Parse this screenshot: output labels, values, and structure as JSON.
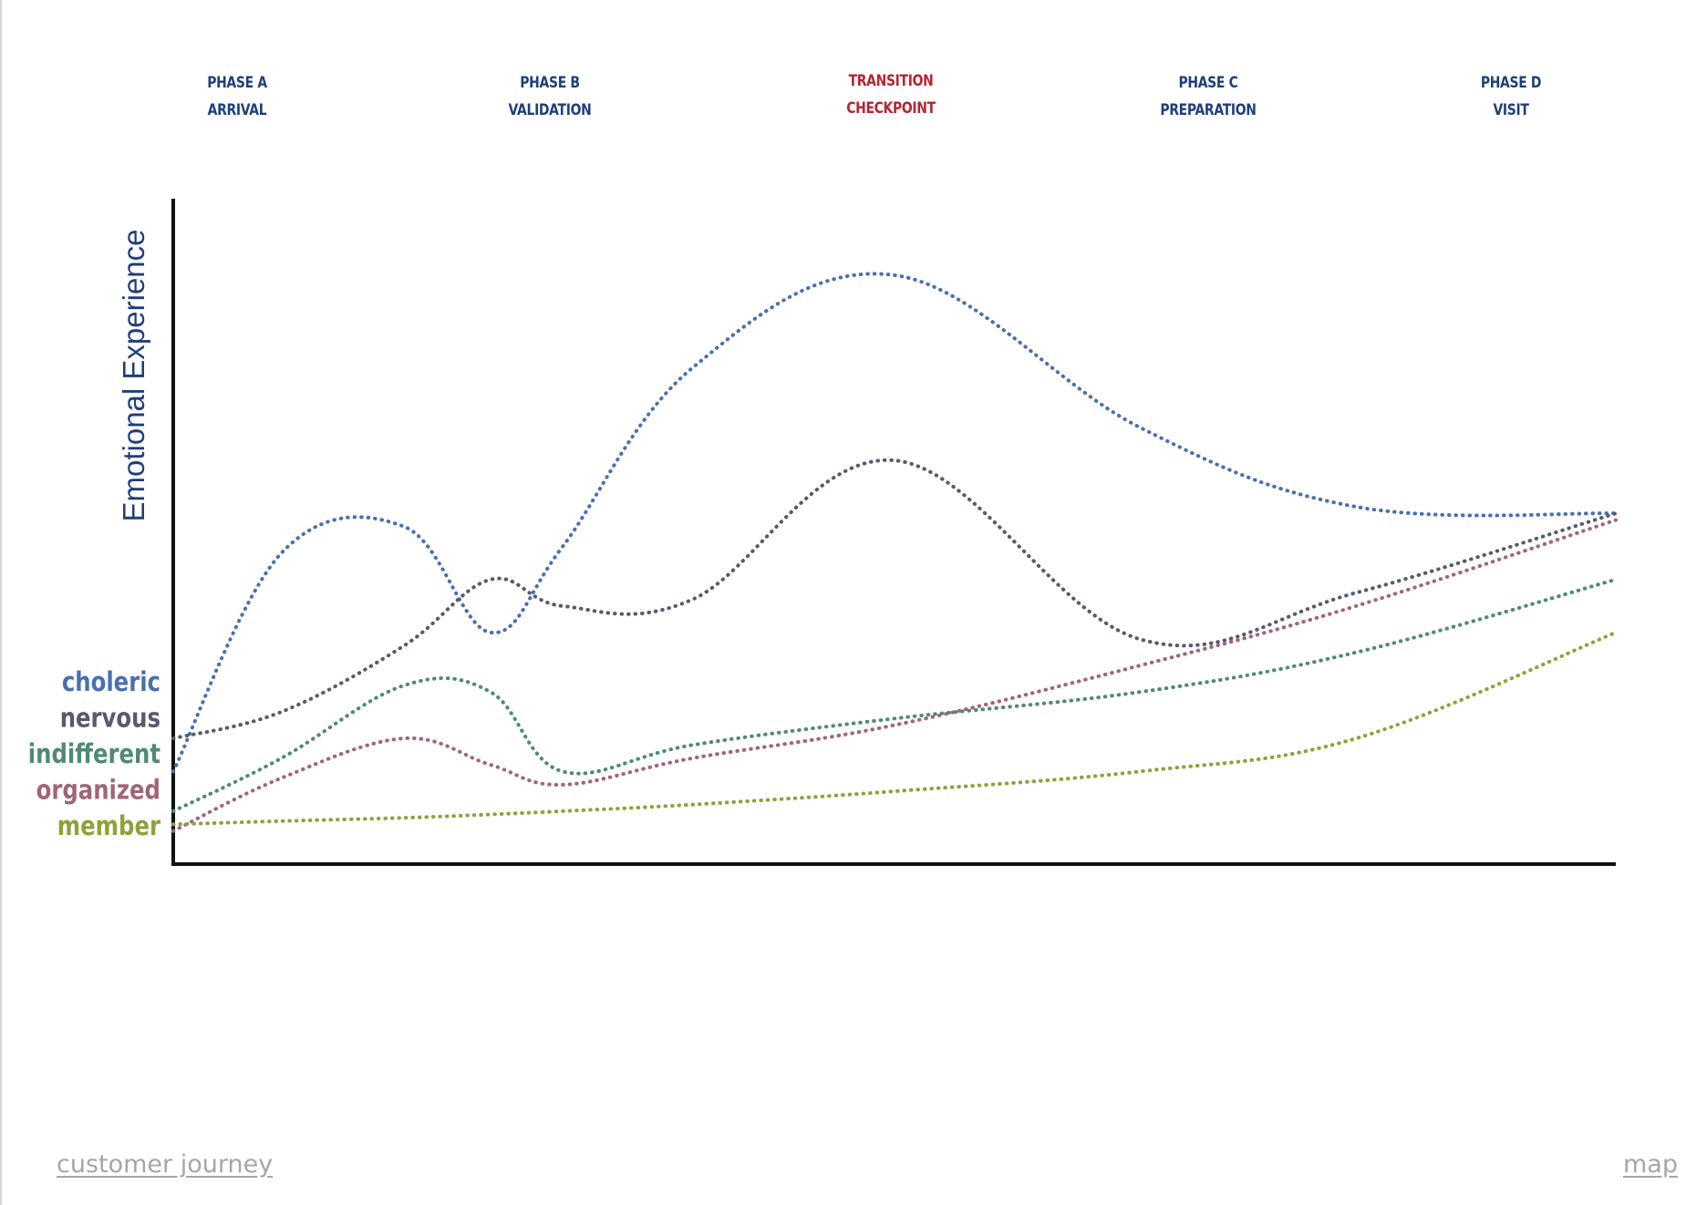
{
  "phases": [
    {
      "line1": "PHASE A",
      "line2": "ARRIVAL",
      "color": "#1f3f7a"
    },
    {
      "line1": "PHASE B",
      "line2": "VALIDATION",
      "color": "#1f3f7a"
    },
    {
      "line1": "TRANSITION",
      "line2": "CHECKPOINT",
      "color": "#b52533"
    },
    {
      "line1": "PHASE C",
      "line2": "PREPARATION",
      "color": "#1f3f7a"
    },
    {
      "line1": "PHASE D",
      "line2": "VISIT",
      "color": "#1f3f7a"
    }
  ],
  "footer": {
    "left_link": "customer journey",
    "right_link": "map"
  },
  "chart_data": {
    "type": "line",
    "title": "",
    "xlabel": "",
    "ylabel": "Emotional Experience",
    "x": [
      0,
      7.5,
      16,
      22,
      27,
      36,
      50,
      67,
      82,
      100
    ],
    "xlim": [
      0,
      100
    ],
    "ylim": [
      0,
      100
    ],
    "grid": false,
    "legend_position": "left",
    "series": [
      {
        "name": "choleric",
        "color": "#4a6fb0",
        "values": [
          14,
          47,
          51,
          35,
          48,
          75,
          89,
          66,
          54,
          53
        ]
      },
      {
        "name": "nervous",
        "color": "#555a6e",
        "values": [
          19,
          23,
          33,
          43,
          39,
          40,
          61,
          34,
          41,
          53
        ]
      },
      {
        "name": "indifferent",
        "color": "#4f8a72",
        "values": [
          8,
          16,
          27,
          26,
          14,
          18,
          22,
          26,
          32,
          43
        ]
      },
      {
        "name": "organized",
        "color": "#a06578",
        "values": [
          5,
          13,
          19,
          15,
          12,
          16,
          21,
          30,
          39,
          52
        ]
      },
      {
        "name": "member",
        "color": "#8fa13a",
        "values": [
          6,
          6.5,
          7,
          7.5,
          8,
          9,
          11,
          14,
          19,
          35
        ]
      }
    ]
  }
}
